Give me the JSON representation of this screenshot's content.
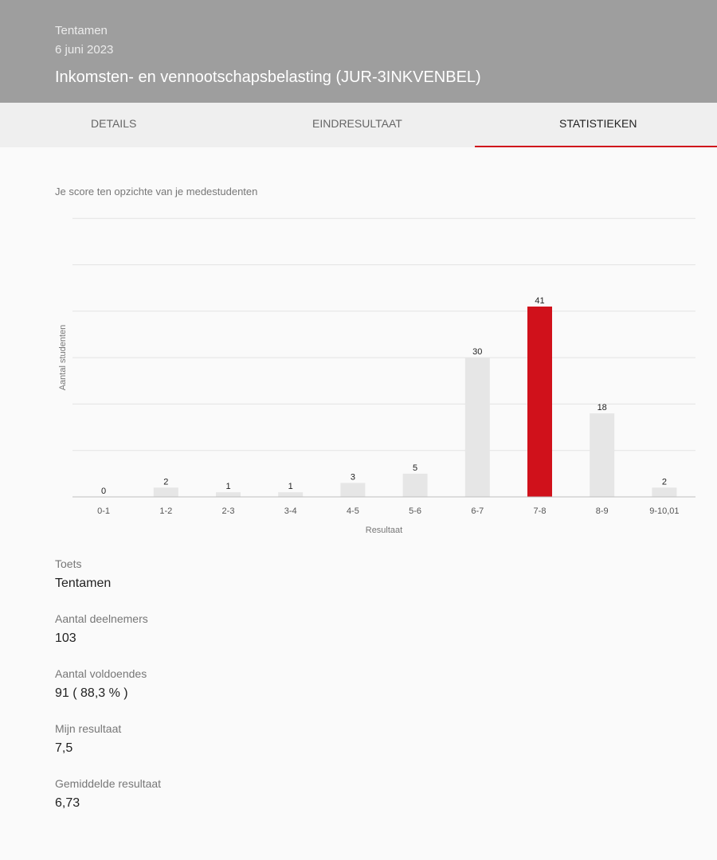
{
  "header": {
    "label": "Tentamen",
    "date": "6 juni 2023",
    "title": "Inkomsten- en vennootschapsbelasting (JUR-3INKVENBEL)"
  },
  "tabs": [
    {
      "label": "DETAILS",
      "active": false
    },
    {
      "label": "EINDRESULTAAT",
      "active": false
    },
    {
      "label": "STATISTIEKEN",
      "active": true
    }
  ],
  "chart_caption": "Je score ten opzichte van je medestudenten",
  "chart_data": {
    "type": "bar",
    "title": "",
    "xlabel": "Resultaat",
    "ylabel": "Aantal studenten",
    "categories": [
      "0-1",
      "1-2",
      "2-3",
      "3-4",
      "4-5",
      "5-6",
      "6-7",
      "7-8",
      "8-9",
      "9-10,01"
    ],
    "values": [
      0,
      2,
      1,
      1,
      3,
      5,
      30,
      41,
      18,
      2
    ],
    "highlight_index": 7,
    "ylim": [
      0,
      60
    ],
    "grid": true,
    "colors": {
      "default": "#e6e6e6",
      "highlight": "#d0111b"
    }
  },
  "stats": [
    {
      "label": "Toets",
      "value": "Tentamen"
    },
    {
      "label": "Aantal deelnemers",
      "value": "103"
    },
    {
      "label": "Aantal voldoendes",
      "value": "91 ( 88,3 % )"
    },
    {
      "label": "Mijn resultaat",
      "value": "7,5"
    },
    {
      "label": "Gemiddelde resultaat",
      "value": "6,73"
    }
  ]
}
